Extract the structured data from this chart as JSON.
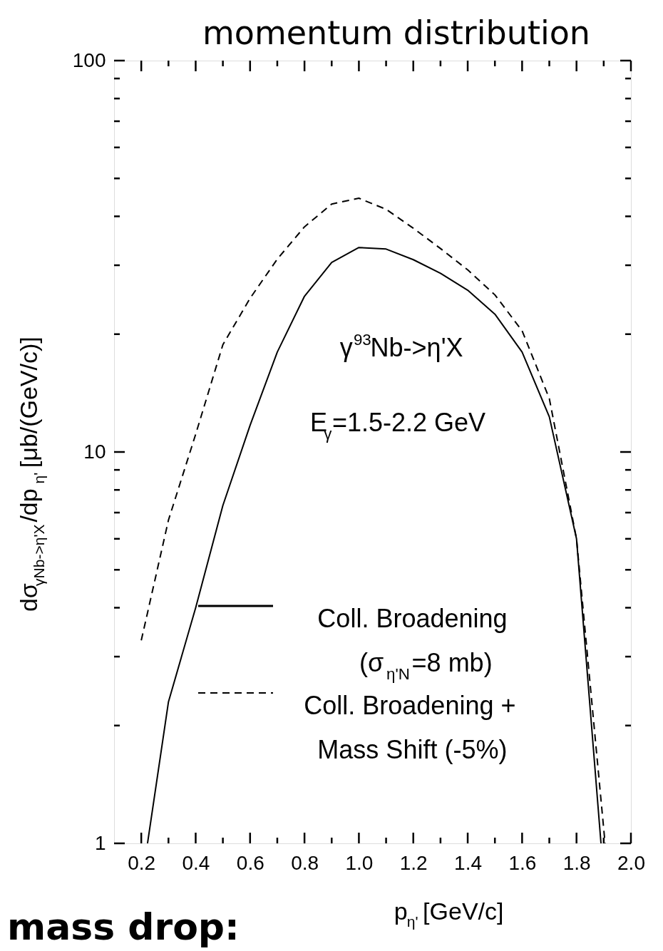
{
  "chart_data": {
    "type": "line",
    "title": "momentum distribution",
    "xlabel": "p$_{η'}$ [GeV/c]",
    "ylabel": "dσ$_{γNb->η'X}$/dp$_{η'}$ [μb/(GeV/c)]",
    "log": "y",
    "xlim": [
      0.1,
      2.0
    ],
    "ylim": [
      1,
      100
    ],
    "xticks": [
      0.2,
      {
        "value": 0.3,
        "label": null
      },
      0.4,
      {
        "value": 0.5,
        "label": null
      },
      0.6,
      {
        "value": 0.7,
        "label": null
      },
      0.8,
      {
        "value": 0.9,
        "label": null
      },
      {
        "value": 1.0,
        "label": "1.0"
      },
      {
        "value": 1.1,
        "label": null
      },
      1.2,
      {
        "value": 1.3,
        "label": null
      },
      1.4,
      {
        "value": 1.5,
        "label": null
      },
      1.6,
      {
        "value": 1.7,
        "label": null
      },
      1.8,
      {
        "value": 1.9,
        "label": null
      },
      {
        "value": 2.0,
        "label": "2.0"
      }
    ],
    "yticks": [
      1,
      {
        "value": 2,
        "label": null
      },
      {
        "value": 3,
        "label": null
      },
      {
        "value": 4,
        "label": null
      },
      {
        "value": 5,
        "label": null
      },
      {
        "value": 6,
        "label": null
      },
      {
        "value": 7,
        "label": null
      },
      {
        "value": 8,
        "label": null
      },
      {
        "value": 9,
        "label": null
      },
      10,
      {
        "value": 20,
        "label": null
      },
      {
        "value": 30,
        "label": null
      },
      {
        "value": 40,
        "label": null
      },
      {
        "value": 50,
        "label": null
      },
      {
        "value": 60,
        "label": null
      },
      {
        "value": 70,
        "label": null
      },
      {
        "value": 80,
        "label": null
      },
      {
        "value": 90,
        "label": null
      },
      100
    ],
    "legend": "bottom right",
    "annotations": [
      "γ$^{93}$Nb->η'X",
      "E$_{γ}$=1.5-2.2 GeV",
      "mass drop:"
    ],
    "series": [
      {
        "name": "Coll. Broadening\n(σ$_{η'N}$=8 mb)",
        "color": "#000000",
        "line_style": "solid",
        "x": [
          0.223,
          0.3,
          0.4,
          0.5,
          0.6,
          0.7,
          0.8,
          0.9,
          1.0,
          1.1,
          1.2,
          1.3,
          1.4,
          1.5,
          1.6,
          1.7,
          1.8,
          1.89
        ],
        "values": [
          1,
          2.3,
          4.0,
          7.3,
          11.7,
          18,
          25,
          30.5,
          33.3,
          33,
          31,
          28.6,
          25.9,
          22.5,
          18,
          12.3,
          6,
          1
        ]
      },
      {
        "name": "Coll. Broadening +\nMass Shift (-5%)",
        "color": "#000000",
        "line_style": "dashed",
        "x": [
          0.2,
          0.3,
          0.4,
          0.5,
          0.6,
          0.7,
          0.8,
          0.9,
          1.0,
          1.1,
          1.2,
          1.3,
          1.4,
          1.5,
          1.6,
          1.7,
          1.8,
          1.905
        ],
        "values": [
          3.3,
          6.7,
          11.1,
          18.8,
          24.7,
          31.1,
          37.6,
          43,
          44.5,
          41.7,
          37.3,
          33.1,
          29.2,
          25.2,
          20.4,
          13.7,
          6,
          1
        ]
      }
    ]
  }
}
